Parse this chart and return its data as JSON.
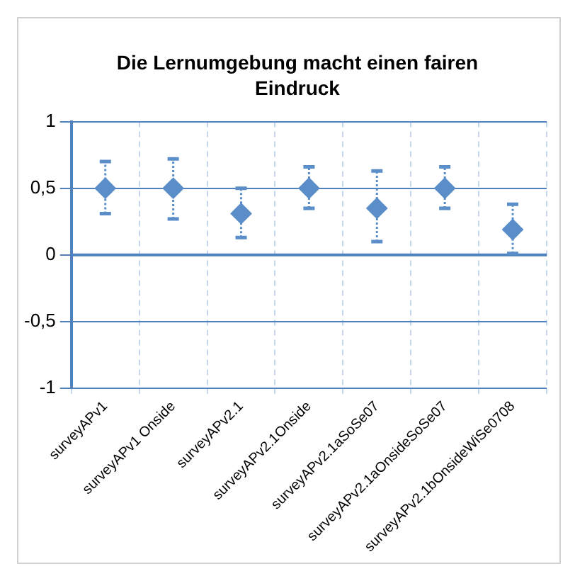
{
  "chart_data": {
    "type": "scatter",
    "title": "Die Lernumgebung macht einen fairen Eindruck",
    "categories": [
      "surveyAPv1",
      "surveyAPv1 Onside",
      "surveyAPv2.1",
      "surveyAPv2.1Onside",
      "surveyAPv2.1aSoSe07",
      "surveyAPv2.1aOnsideSoSe07",
      "surveyAPv2.1bOnsideWiSe0708"
    ],
    "series": [
      {
        "color": "#5b8ec9",
        "values": [
          0.5,
          0.5,
          0.31,
          0.5,
          0.35,
          0.5,
          0.19
        ],
        "errors": [
          [
            0.31,
            0.7
          ],
          [
            0.27,
            0.72
          ],
          [
            0.13,
            0.5
          ],
          [
            0.35,
            0.66
          ],
          [
            0.1,
            0.63
          ],
          [
            0.35,
            0.66
          ],
          [
            0.01,
            0.38
          ]
        ]
      }
    ],
    "marker": "diamond",
    "ylim": [
      -1,
      1
    ],
    "yticks": [
      {
        "value": -1,
        "label": "-1"
      },
      {
        "value": -0.5,
        "label": "-0,5"
      },
      {
        "value": 0,
        "label": "0"
      },
      {
        "value": 0.5,
        "label": "0,5"
      },
      {
        "value": 1,
        "label": "1"
      }
    ],
    "ref_lines": [
      {
        "axis": "y",
        "value": 0,
        "color": "#4f81bd"
      }
    ],
    "grid": true
  }
}
